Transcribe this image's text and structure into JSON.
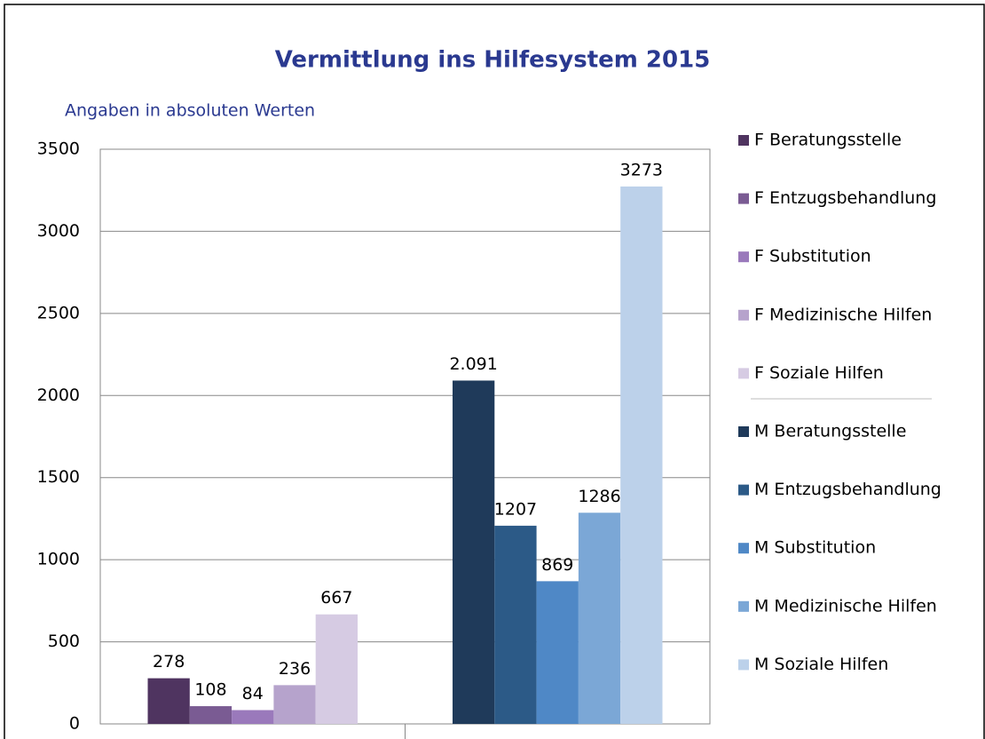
{
  "chart_data": {
    "type": "bar",
    "title": "Vermittlung ins Hilfesystem 2015",
    "subtitle": "Angaben in absoluten Werten",
    "categories": [
      null,
      null
    ],
    "series": [
      {
        "name": "F Beratungsstelle",
        "color": "#4f3460",
        "values": [
          278,
          null
        ]
      },
      {
        "name": "F Entzugsbehandlung",
        "color": "#7a5b93",
        "values": [
          108,
          null
        ]
      },
      {
        "name": "F Substitution",
        "color": "#9a79bb",
        "values": [
          84,
          null
        ]
      },
      {
        "name": "F Medizinische Hilfen",
        "color": "#b6a3cc",
        "values": [
          236,
          null
        ]
      },
      {
        "name": "F Soziale Hilfen",
        "color": "#d6cbe3",
        "values": [
          667,
          null
        ]
      },
      {
        "name": "M Beratungsstelle",
        "color": "#1f3a5a",
        "values": [
          null,
          2091
        ],
        "value_labels": [
          null,
          "2.091"
        ]
      },
      {
        "name": "M Entzugsbehandlung",
        "color": "#2c5a87",
        "values": [
          null,
          1207
        ]
      },
      {
        "name": "M Substitution",
        "color": "#4f88c6",
        "values": [
          null,
          869
        ]
      },
      {
        "name": "M Medizinische Hilfen",
        "color": "#7ba7d6",
        "values": [
          null,
          1286
        ]
      },
      {
        "name": "M Soziale Hilfen",
        "color": "#bcd1ea",
        "values": [
          null,
          3273
        ]
      }
    ],
    "ylim": [
      0,
      3500
    ],
    "yticks": [
      0,
      500,
      1000,
      1500,
      2000,
      2500,
      3000,
      3500
    ],
    "grid": true,
    "legend": "right"
  }
}
